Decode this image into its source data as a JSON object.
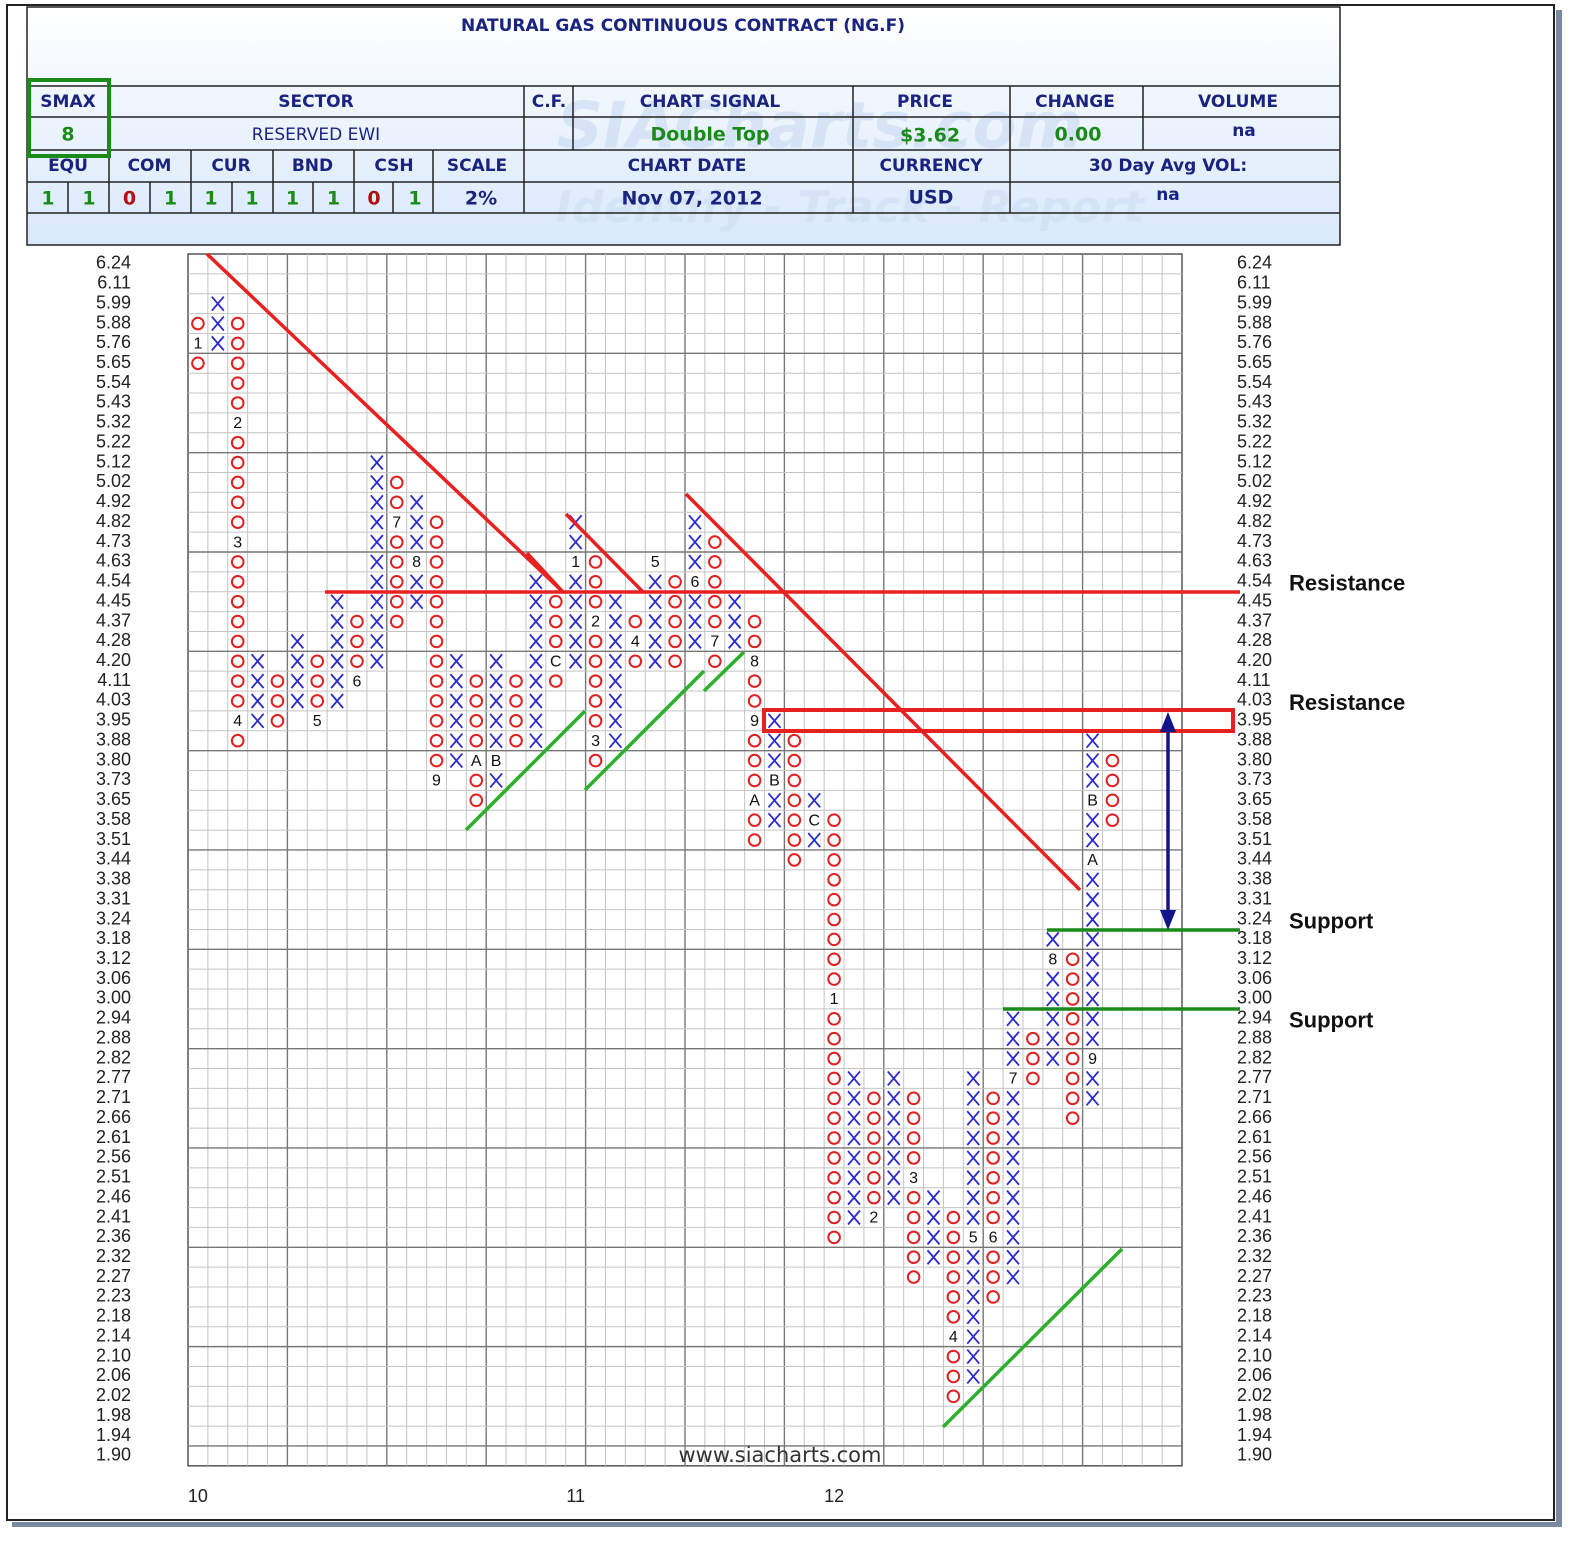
{
  "header": {
    "title": "NATURAL GAS CONTINUOUS CONTRACT (NG.F)",
    "smax_label": "SMAX",
    "smax": "8",
    "sector_label": "SECTOR",
    "sector": "RESERVED EWI",
    "cf_label": "C.F.",
    "signal_label": "CHART SIGNAL",
    "signal": "Double Top",
    "price_label": "PRICE",
    "price": "$3.62",
    "change_label": "CHANGE",
    "change": "0.00",
    "volume_label": "VOLUME",
    "volume": "na",
    "asset_classes": [
      {
        "name": "EQU",
        "values": [
          1,
          1
        ]
      },
      {
        "name": "COM",
        "values": [
          0,
          1
        ]
      },
      {
        "name": "CUR",
        "values": [
          1,
          1
        ]
      },
      {
        "name": "BND",
        "values": [
          1,
          1
        ]
      },
      {
        "name": "CSH",
        "values": [
          0,
          1
        ]
      }
    ],
    "scale_label": "SCALE",
    "scale": "2%",
    "date_label": "CHART DATE",
    "date": "Nov 07, 2012",
    "currency_label": "CURRENCY",
    "currency": "USD",
    "avg_vol_label": "30 Day Avg VOL:",
    "avg_vol": "na"
  },
  "chart_data": {
    "type": "point-figure",
    "yticks": [
      6.24,
      6.11,
      5.99,
      5.88,
      5.76,
      5.65,
      5.54,
      5.43,
      5.32,
      5.22,
      5.12,
      5.02,
      4.92,
      4.82,
      4.73,
      4.63,
      4.54,
      4.45,
      4.37,
      4.28,
      {
        "value": 4.2,
        "label": "4.20"
      },
      4.11,
      4.03,
      3.95,
      3.88,
      {
        "value": 3.8,
        "label": "3.80"
      },
      3.73,
      3.65,
      3.58,
      3.51,
      3.44,
      3.38,
      3.31,
      3.24,
      3.18,
      3.12,
      3.06,
      {
        "value": 3,
        "label": "3.00"
      },
      2.94,
      2.88,
      2.82,
      2.77,
      2.71,
      2.66,
      2.61,
      2.56,
      2.51,
      2.46,
      2.41,
      2.36,
      2.32,
      2.27,
      2.23,
      2.18,
      2.14,
      {
        "value": 2.1,
        "label": "2.10"
      },
      2.06,
      2.02,
      1.98,
      1.94,
      {
        "value": 1.9,
        "label": "1.90"
      }
    ],
    "x_color": "#2a2ad0",
    "o_color": "#e02020",
    "columns": [
      {
        "type": "O",
        "top": 5.88,
        "bottom": 5.65,
        "marks": [
          {
            "value": 5.76,
            "label": "1"
          }
        ]
      },
      {
        "type": "X",
        "top": 5.99,
        "bottom": 5.76
      },
      {
        "type": "O",
        "top": 5.88,
        "bottom": 3.88,
        "marks": [
          {
            "value": 5.32,
            "label": "2"
          },
          {
            "value": 4.73,
            "label": "3"
          },
          {
            "value": 3.95,
            "label": "4"
          }
        ]
      },
      {
        "type": "X",
        "top": 4.2,
        "bottom": 3.95
      },
      {
        "type": "O",
        "top": 4.11,
        "bottom": 3.95
      },
      {
        "type": "X",
        "top": 4.28,
        "bottom": 4.03
      },
      {
        "type": "O",
        "top": 4.2,
        "bottom": 3.95,
        "marks": [
          {
            "value": 3.95,
            "label": "5"
          }
        ]
      },
      {
        "type": "X",
        "top": 4.45,
        "bottom": 4.03
      },
      {
        "type": "O",
        "top": 4.37,
        "bottom": 4.11,
        "marks": [
          {
            "value": 4.11,
            "label": "6"
          }
        ]
      },
      {
        "type": "X",
        "top": 5.12,
        "bottom": 4.2
      },
      {
        "type": "O",
        "top": 5.02,
        "bottom": 4.37,
        "marks": [
          {
            "value": 4.82,
            "label": "7"
          }
        ]
      },
      {
        "type": "X",
        "top": 4.92,
        "bottom": 4.45,
        "marks": [
          {
            "value": 4.63,
            "label": "8"
          }
        ]
      },
      {
        "type": "O",
        "top": 4.82,
        "bottom": 3.73,
        "marks": [
          {
            "value": 3.73,
            "label": "9"
          }
        ]
      },
      {
        "type": "X",
        "top": 4.2,
        "bottom": 3.8
      },
      {
        "type": "O",
        "top": 4.11,
        "bottom": 3.65,
        "marks": [
          {
            "value": 3.8,
            "label": "A"
          }
        ]
      },
      {
        "type": "X",
        "top": 4.2,
        "bottom": 3.73,
        "marks": [
          {
            "value": 3.8,
            "label": "B"
          }
        ]
      },
      {
        "type": "O",
        "top": 4.11,
        "bottom": 3.88
      },
      {
        "type": "X",
        "top": 4.54,
        "bottom": 3.88
      },
      {
        "type": "O",
        "top": 4.45,
        "bottom": 4.11,
        "marks": [
          {
            "value": 4.2,
            "label": "C"
          }
        ]
      },
      {
        "type": "X",
        "top": 4.82,
        "bottom": 4.2,
        "marks": [
          {
            "value": 4.63,
            "label": "1"
          }
        ]
      },
      {
        "type": "O",
        "top": 4.63,
        "bottom": 3.8,
        "marks": [
          {
            "value": 4.37,
            "label": "2"
          },
          {
            "value": 3.88,
            "label": "3"
          }
        ]
      },
      {
        "type": "X",
        "top": 4.45,
        "bottom": 3.88
      },
      {
        "type": "O",
        "top": 4.37,
        "bottom": 4.2,
        "marks": [
          {
            "value": 4.28,
            "label": "4"
          }
        ]
      },
      {
        "type": "X",
        "top": 4.63,
        "bottom": 4.2,
        "marks": [
          {
            "value": 4.63,
            "label": "5"
          }
        ]
      },
      {
        "type": "O",
        "top": 4.54,
        "bottom": 4.2
      },
      {
        "type": "X",
        "top": 4.82,
        "bottom": 4.28,
        "marks": [
          {
            "value": 4.54,
            "label": "6"
          }
        ]
      },
      {
        "type": "O",
        "top": 4.73,
        "bottom": 4.2,
        "marks": [
          {
            "value": 4.28,
            "label": "7"
          }
        ]
      },
      {
        "type": "X",
        "top": 4.45,
        "bottom": 4.28
      },
      {
        "type": "O",
        "top": 4.37,
        "bottom": 3.51,
        "marks": [
          {
            "value": 4.2,
            "label": "8"
          },
          {
            "value": 3.95,
            "label": "9"
          },
          {
            "value": 3.65,
            "label": "A"
          }
        ]
      },
      {
        "type": "X",
        "top": 3.95,
        "bottom": 3.58,
        "marks": [
          {
            "value": 3.73,
            "label": "B"
          }
        ]
      },
      {
        "type": "O",
        "top": 3.88,
        "bottom": 3.44
      },
      {
        "type": "X",
        "top": 3.65,
        "bottom": 3.51,
        "marks": [
          {
            "value": 3.58,
            "label": "C"
          }
        ]
      },
      {
        "type": "O",
        "top": 3.58,
        "bottom": 2.36,
        "marks": [
          {
            "value": 3,
            "label": "1"
          }
        ]
      },
      {
        "type": "X",
        "top": 2.77,
        "bottom": 2.41
      },
      {
        "type": "O",
        "top": 2.71,
        "bottom": 2.41,
        "marks": [
          {
            "value": 2.41,
            "label": "2"
          }
        ]
      },
      {
        "type": "X",
        "top": 2.77,
        "bottom": 2.46
      },
      {
        "type": "O",
        "top": 2.71,
        "bottom": 2.27,
        "marks": [
          {
            "value": 2.51,
            "label": "3"
          }
        ]
      },
      {
        "type": "X",
        "top": 2.46,
        "bottom": 2.32
      },
      {
        "type": "O",
        "top": 2.41,
        "bottom": 2.02,
        "marks": [
          {
            "value": 2.14,
            "label": "4"
          }
        ]
      },
      {
        "type": "X",
        "top": 2.77,
        "bottom": 2.06,
        "marks": [
          {
            "value": 2.36,
            "label": "5"
          }
        ]
      },
      {
        "type": "O",
        "top": 2.71,
        "bottom": 2.23,
        "marks": [
          {
            "value": 2.36,
            "label": "6"
          }
        ]
      },
      {
        "type": "X",
        "top": 2.94,
        "bottom": 2.27,
        "marks": [
          {
            "value": 2.77,
            "label": "7"
          }
        ]
      },
      {
        "type": "O",
        "top": 2.88,
        "bottom": 2.77
      },
      {
        "type": "X",
        "top": 3.18,
        "bottom": 2.82,
        "marks": [
          {
            "value": 3.12,
            "label": "8"
          }
        ]
      },
      {
        "type": "O",
        "top": 3.12,
        "bottom": 2.66
      },
      {
        "type": "X",
        "top": 3.88,
        "bottom": 2.71,
        "marks": [
          {
            "value": 2.82,
            "label": "9"
          },
          {
            "value": 3.44,
            "label": "A"
          },
          {
            "value": 3.65,
            "label": "B"
          }
        ]
      },
      {
        "type": "O",
        "top": 3.8,
        "bottom": 3.58
      }
    ],
    "years": [
      {
        "label": "10",
        "column": 0
      },
      {
        "label": "11",
        "column": 19
      },
      {
        "label": "12",
        "column": 32
      }
    ],
    "annotations": [
      {
        "label": "Resistance",
        "value": 4.54
      },
      {
        "label": "Resistance",
        "value": 4.03
      },
      {
        "label": "Support",
        "value": 3.24
      },
      {
        "label": "Support",
        "value": 2.94
      }
    ],
    "footer": "www.siacharts.com"
  }
}
